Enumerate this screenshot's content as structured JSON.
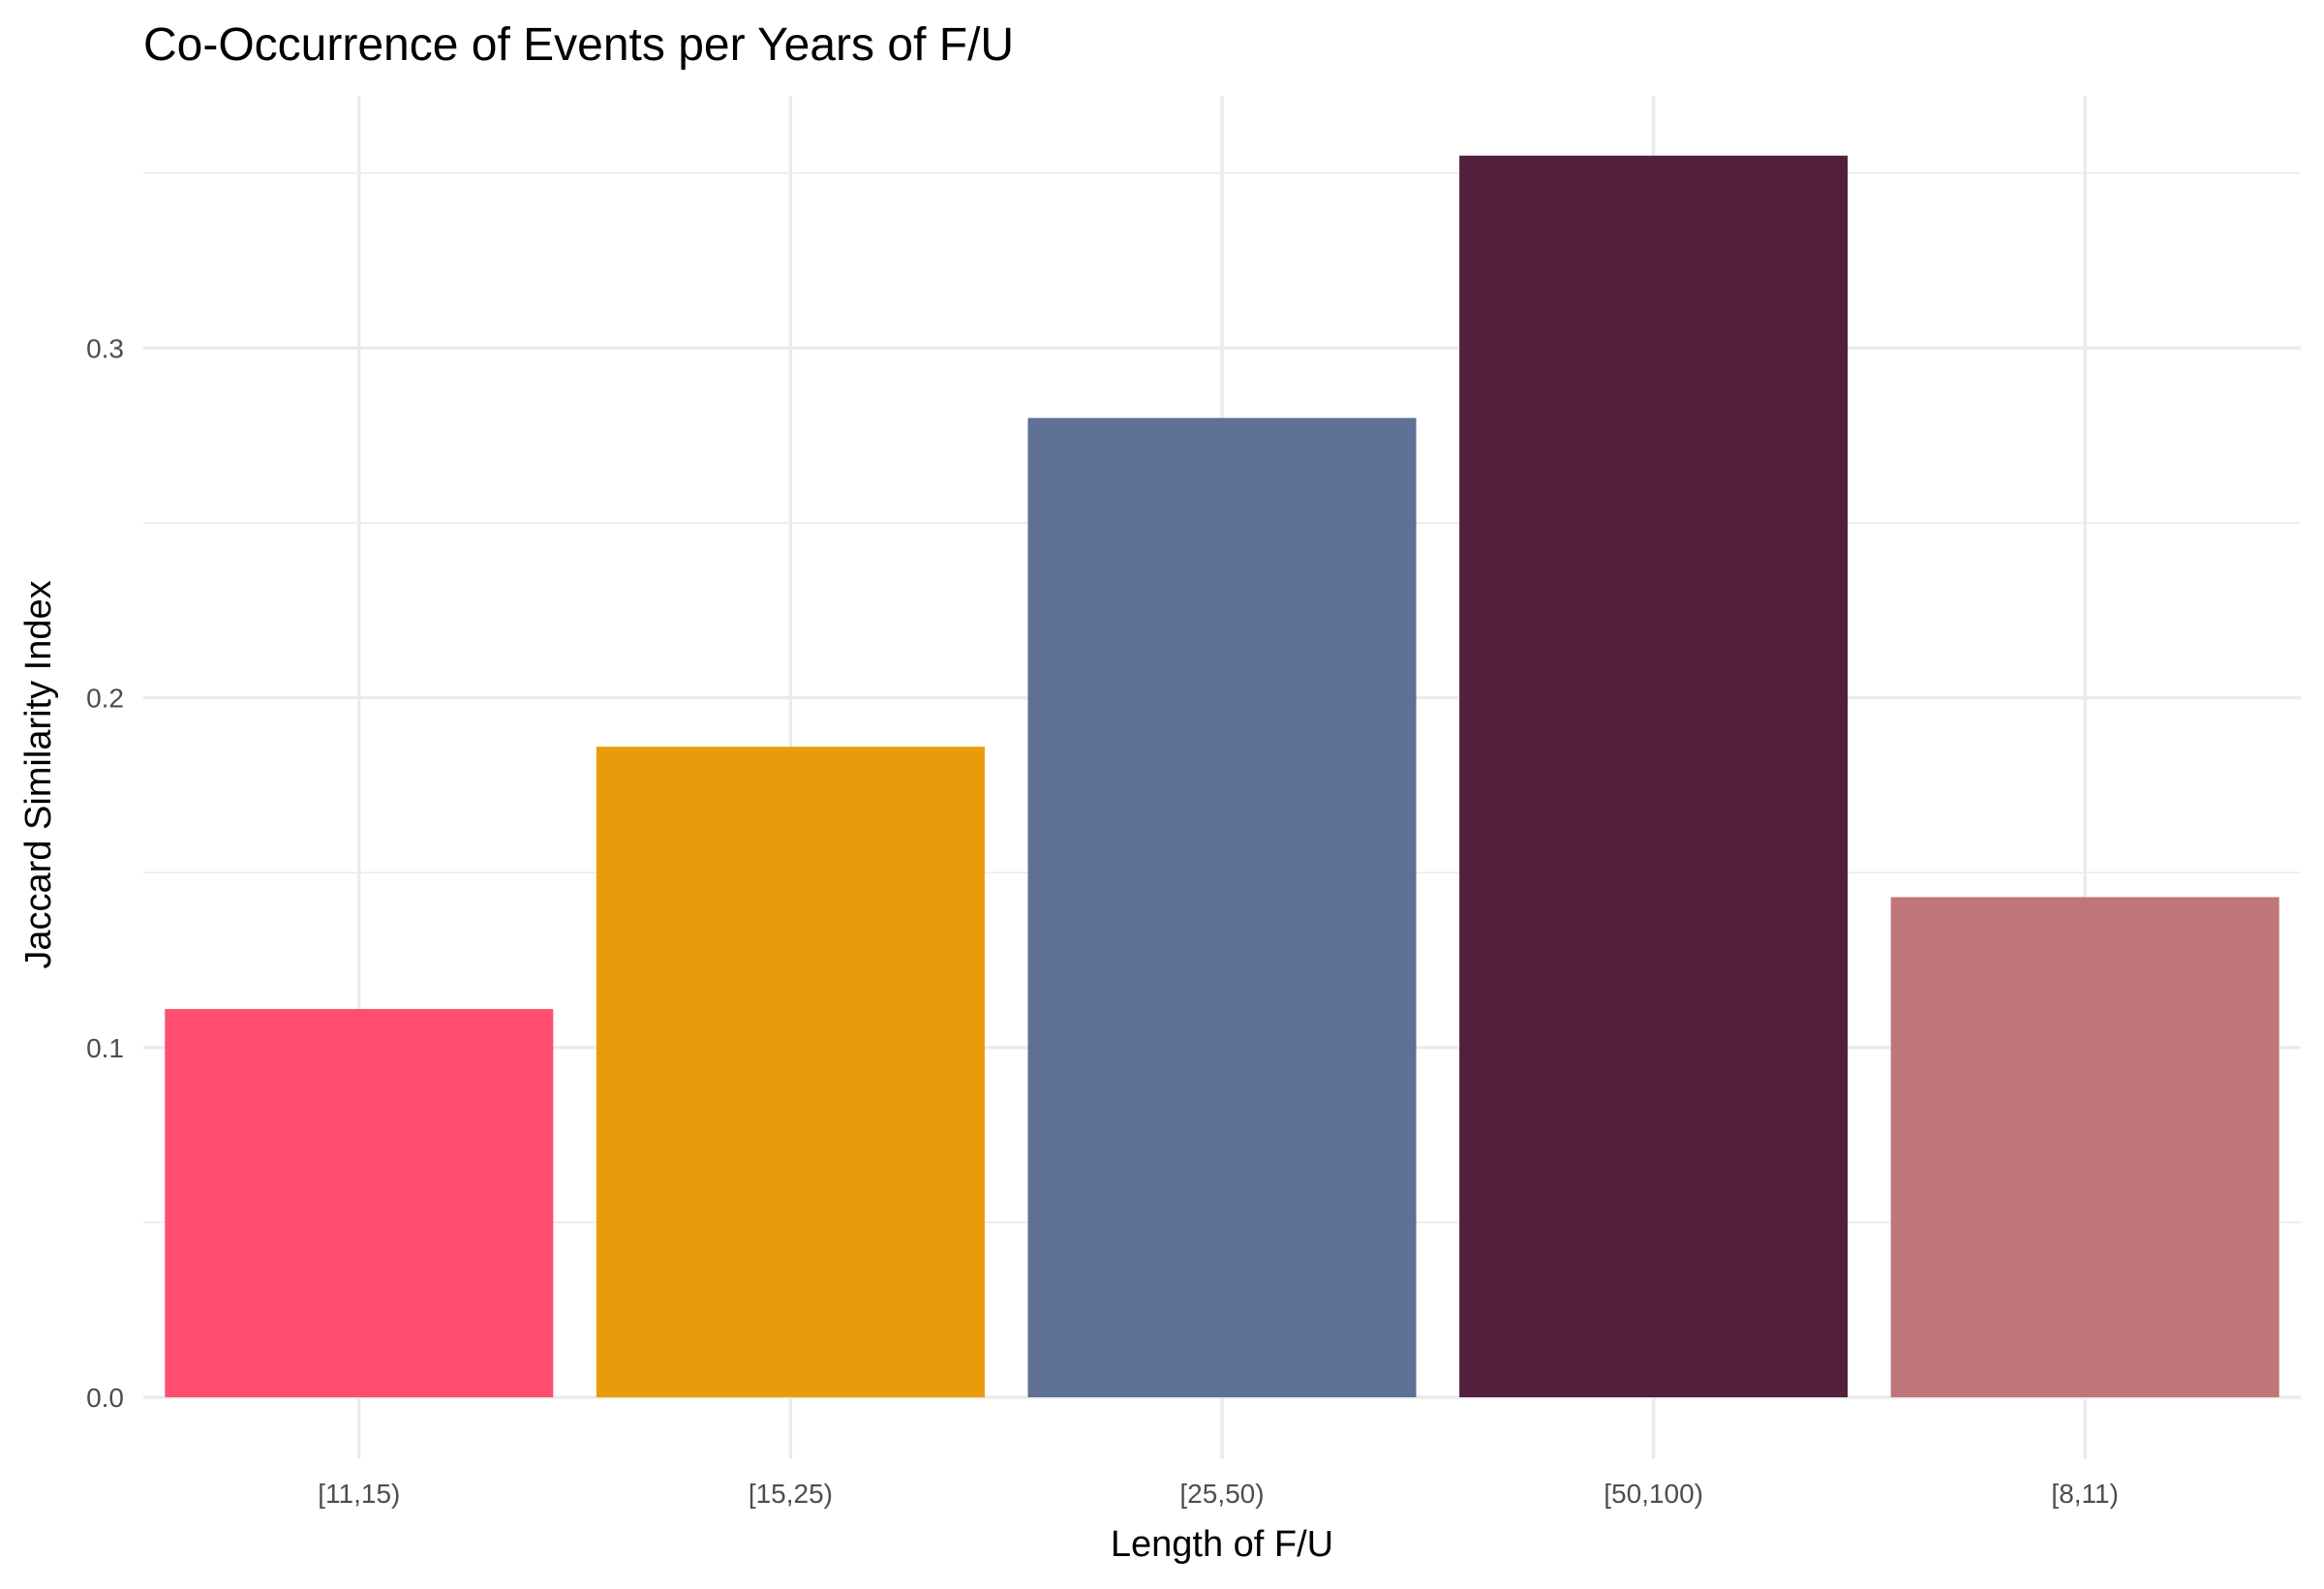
{
  "chart_data": {
    "type": "bar",
    "title": "Co-Occurrence of Events per Years of F/U",
    "xlabel": "Length of F/U",
    "ylabel": "Jaccard Similarity Index",
    "categories": [
      "[11,15)",
      "[15,25)",
      "[25,50)",
      "[50,100)",
      "[8,11)"
    ],
    "values": [
      0.111,
      0.186,
      0.28,
      0.355,
      0.143
    ],
    "colors": [
      "#FF4E6F",
      "#EA9B0C",
      "#5E7096",
      "#531F3D",
      "#BE7678"
    ],
    "yticks": [
      "0.0",
      "0.1",
      "0.2",
      "0.3"
    ],
    "ytick_values": [
      0,
      0.1,
      0.2,
      0.3
    ],
    "ylim": [
      -0.0175,
      0.372
    ],
    "grid": true,
    "legend": "none"
  }
}
